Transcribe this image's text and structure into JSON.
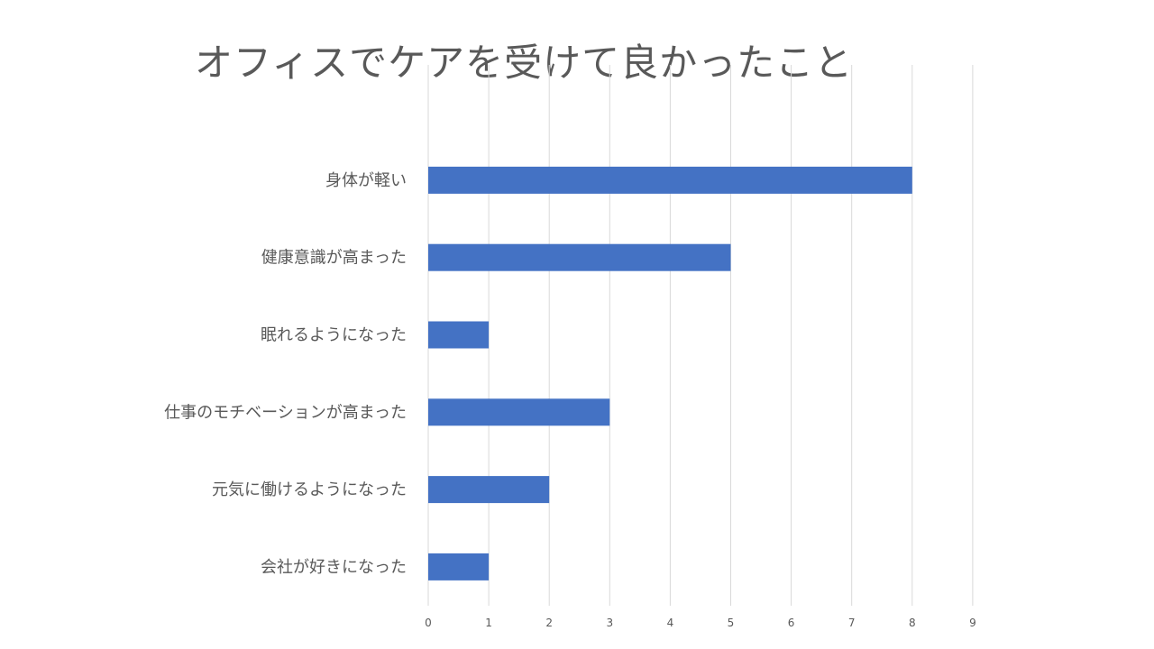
{
  "chart_data": {
    "type": "bar",
    "orientation": "horizontal",
    "title": "オフィスでケアを受けて良かったこと",
    "categories": [
      "身体が軽い",
      "健康意識が高まった",
      "眠れるようになった",
      "仕事のモチベーションが高まった",
      "元気に働けるようになった",
      "会社が好きになった"
    ],
    "values": [
      8,
      5,
      1,
      3,
      2,
      1
    ],
    "xlim": [
      0,
      9
    ],
    "xticks": [
      "0",
      "1",
      "2",
      "3",
      "4",
      "5",
      "6",
      "7",
      "8",
      "9"
    ],
    "grid": true,
    "bar_color": "#4472c4",
    "grid_color": "#d9d9d9"
  }
}
